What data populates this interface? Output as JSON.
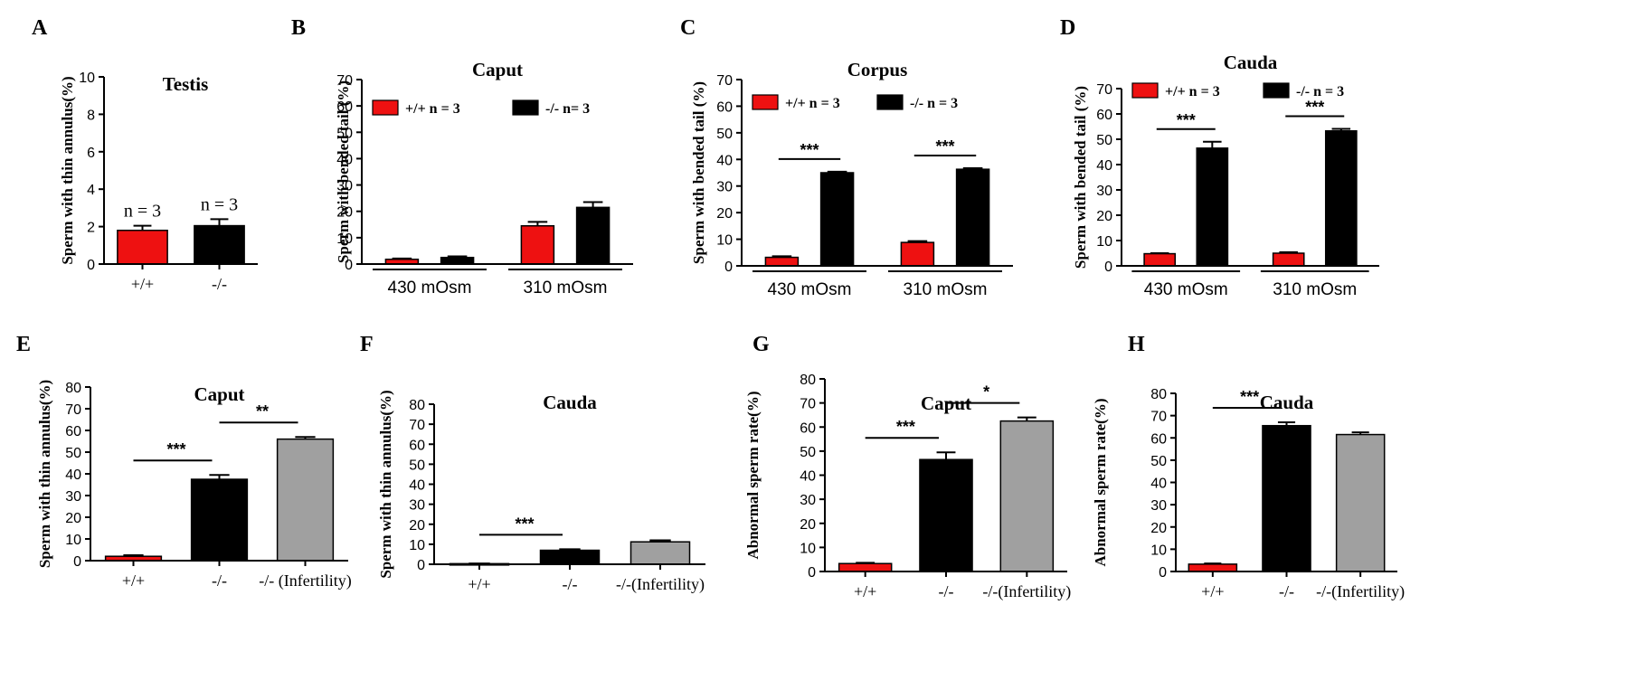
{
  "colors": {
    "wt": "#ee1111",
    "ko": "#000000",
    "infertile": "#a0a0a0",
    "errorbar": "#000000"
  },
  "chart_data": [
    {
      "panel": "A",
      "type": "bar",
      "title": "Testis",
      "ylabel": "Sperm with thin annulus(%)",
      "xlabel": "",
      "ylim": [
        0,
        10
      ],
      "yticks": [
        0,
        2,
        4,
        6,
        8,
        10
      ],
      "categories": [
        "+/+",
        "-/-"
      ],
      "values": [
        1.8,
        2.05
      ],
      "errors": [
        0.25,
        0.35
      ],
      "bar_colors": [
        "wt",
        "ko"
      ],
      "bar_labels": [
        "n = 3",
        "n = 3"
      ],
      "legend": [],
      "significance": [],
      "groups": []
    },
    {
      "panel": "B",
      "type": "bar",
      "title": "Caput",
      "ylabel": "Sperm with bended tail (%)",
      "xlabel": "",
      "ylim": [
        0,
        70
      ],
      "yticks": [
        0,
        10,
        20,
        30,
        40,
        50,
        60,
        70
      ],
      "groups": [
        "430 mOsm",
        "310 mOsm"
      ],
      "series": [
        {
          "name": "+/+  n = 3",
          "color": "wt",
          "values": [
            1.8,
            14.5
          ],
          "errors": [
            0.3,
            1.5
          ]
        },
        {
          "name": "-/-  n= 3",
          "color": "ko",
          "values": [
            2.5,
            21.5
          ],
          "errors": [
            0.4,
            2.0
          ]
        }
      ],
      "legend": [
        "+/+  n = 3",
        "-/-  n= 3"
      ],
      "significance": []
    },
    {
      "panel": "C",
      "type": "bar",
      "title": "Corpus",
      "ylabel": "Sperm with bended tail (%)",
      "xlabel": "",
      "ylim": [
        0,
        70
      ],
      "yticks": [
        0,
        10,
        20,
        30,
        40,
        50,
        60,
        70
      ],
      "groups": [
        "430 mOsm",
        "310 mOsm"
      ],
      "series": [
        {
          "name": "+/+  n = 3",
          "color": "wt",
          "values": [
            3.2,
            8.8
          ],
          "errors": [
            0.4,
            0.5
          ]
        },
        {
          "name": "-/-  n = 3",
          "color": "ko",
          "values": [
            35.0,
            36.3
          ],
          "errors": [
            0.4,
            0.4
          ]
        }
      ],
      "legend": [
        "+/+  n = 3",
        "-/-  n = 3"
      ],
      "significance": [
        {
          "group": 0,
          "label": "***"
        },
        {
          "group": 1,
          "label": "***"
        }
      ]
    },
    {
      "panel": "D",
      "type": "bar",
      "title": "Cauda",
      "ylabel": "Sperm with bended tail (%)",
      "xlabel": "",
      "ylim": [
        0,
        70
      ],
      "yticks": [
        0,
        10,
        20,
        30,
        40,
        50,
        60,
        70
      ],
      "groups": [
        "430 mOsm",
        "310 mOsm"
      ],
      "series": [
        {
          "name": "+/+  n = 3",
          "color": "wt",
          "values": [
            4.8,
            5.0
          ],
          "errors": [
            0.2,
            0.4
          ]
        },
        {
          "name": "-/-  n = 3",
          "color": "ko",
          "values": [
            46.5,
            53.3
          ],
          "errors": [
            2.5,
            0.8
          ]
        }
      ],
      "legend": [
        "+/+  n = 3",
        "-/-  n = 3"
      ],
      "significance": [
        {
          "group": 0,
          "label": "***"
        },
        {
          "group": 1,
          "label": "***"
        }
      ]
    },
    {
      "panel": "E",
      "type": "bar",
      "title": "Caput",
      "ylabel": "Sperm with thin annulus(%)",
      "xlabel": "",
      "ylim": [
        0,
        80
      ],
      "yticks": [
        0,
        10,
        20,
        30,
        40,
        50,
        60,
        70,
        80
      ],
      "categories": [
        "+/+",
        "-/-",
        "-/- (Infertility)"
      ],
      "values": [
        2.0,
        37.5,
        56.0
      ],
      "errors": [
        0.5,
        2.0,
        1.0
      ],
      "bar_colors": [
        "wt",
        "ko",
        "infertile"
      ],
      "bar_labels": [],
      "legend": [],
      "groups": [],
      "significance": [
        {
          "from": 0,
          "to": 1,
          "label": "***"
        },
        {
          "from": 1,
          "to": 2,
          "label": "**"
        }
      ]
    },
    {
      "panel": "F",
      "type": "bar",
      "title": "Cauda",
      "ylabel": "Sperm with thin annulus(%)",
      "xlabel": "",
      "ylim": [
        0,
        80
      ],
      "yticks": [
        0,
        10,
        20,
        30,
        40,
        50,
        60,
        70,
        80
      ],
      "categories": [
        "+/+",
        "-/-",
        "-/-(Infertility)"
      ],
      "values": [
        0.3,
        7.0,
        11.2
      ],
      "errors": [
        0.1,
        0.5,
        0.8
      ],
      "bar_colors": [
        "wt",
        "ko",
        "infertile"
      ],
      "bar_labels": [],
      "legend": [],
      "groups": [],
      "significance": [
        {
          "from": 0,
          "to": 1,
          "label": "***"
        }
      ]
    },
    {
      "panel": "G",
      "type": "bar",
      "title": "Caput",
      "ylabel": "Abnormal sperm rate(%)",
      "xlabel": "",
      "ylim": [
        0,
        80
      ],
      "yticks": [
        0,
        10,
        20,
        30,
        40,
        50,
        60,
        70,
        80
      ],
      "categories": [
        "+/+",
        "-/-",
        "-/-(Infertility)"
      ],
      "values": [
        3.3,
        46.5,
        62.5
      ],
      "errors": [
        0.3,
        3.0,
        1.5
      ],
      "bar_colors": [
        "wt",
        "ko",
        "infertile"
      ],
      "bar_labels": [],
      "legend": [],
      "groups": [],
      "significance": [
        {
          "from": 0,
          "to": 1,
          "label": "***"
        },
        {
          "from": 1,
          "to": 2,
          "label": "*"
        }
      ]
    },
    {
      "panel": "H",
      "type": "bar",
      "title": "Cauda",
      "ylabel": "Abnormal sperm rate(%)",
      "xlabel": "",
      "ylim": [
        0,
        80
      ],
      "yticks": [
        0,
        10,
        20,
        30,
        40,
        50,
        60,
        70,
        80
      ],
      "categories": [
        "+/+",
        "-/-",
        "-/-(Infertility)"
      ],
      "values": [
        3.3,
        65.5,
        61.5
      ],
      "errors": [
        0.3,
        1.5,
        1.0
      ],
      "bar_colors": [
        "wt",
        "ko",
        "infertile"
      ],
      "bar_labels": [],
      "legend": [],
      "groups": [],
      "significance": [
        {
          "from": 0,
          "to": 1,
          "label": "***"
        }
      ]
    }
  ]
}
